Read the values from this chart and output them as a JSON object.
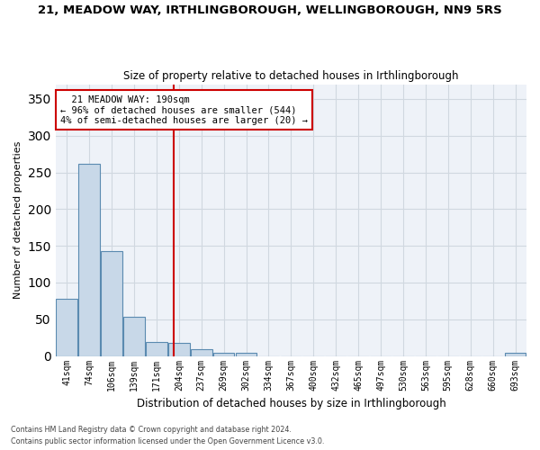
{
  "title": "21, MEADOW WAY, IRTHLINGBOROUGH, WELLINGBOROUGH, NN9 5RS",
  "subtitle": "Size of property relative to detached houses in Irthlingborough",
  "xlabel": "Distribution of detached houses by size in Irthlingborough",
  "ylabel": "Number of detached properties",
  "categories": [
    "41sqm",
    "74sqm",
    "106sqm",
    "139sqm",
    "171sqm",
    "204sqm",
    "237sqm",
    "269sqm",
    "302sqm",
    "334sqm",
    "367sqm",
    "400sqm",
    "432sqm",
    "465sqm",
    "497sqm",
    "530sqm",
    "563sqm",
    "595sqm",
    "628sqm",
    "660sqm",
    "693sqm"
  ],
  "values": [
    78,
    262,
    143,
    54,
    19,
    18,
    9,
    5,
    4,
    0,
    0,
    0,
    0,
    0,
    0,
    0,
    0,
    0,
    0,
    0,
    4
  ],
  "bar_color": "#c8d8e8",
  "bar_edge_color": "#5a8ab0",
  "grid_color": "#d0d8e0",
  "bg_color": "#eef2f8",
  "vline_x": 4.76,
  "vline_color": "#cc0000",
  "annotation_text": "  21 MEADOW WAY: 190sqm\n← 96% of detached houses are smaller (544)\n4% of semi-detached houses are larger (20) →",
  "annotation_box_color": "#cc0000",
  "ylim": [
    0,
    370
  ],
  "yticks": [
    0,
    50,
    100,
    150,
    200,
    250,
    300,
    350
  ],
  "footer_line1": "Contains HM Land Registry data © Crown copyright and database right 2024.",
  "footer_line2": "Contains public sector information licensed under the Open Government Licence v3.0."
}
